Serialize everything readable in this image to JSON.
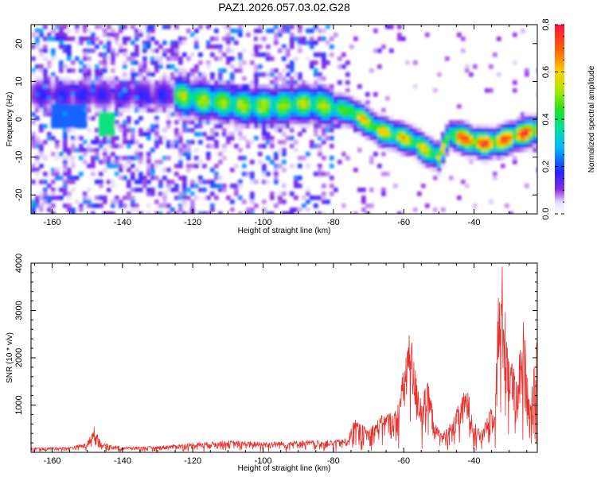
{
  "title": "PAZ1.2026.057.03.02.G28",
  "chart_data": [
    {
      "type": "heatmap",
      "title": "PAZ1.2026.057.03.02.G28",
      "xlabel": "Height of straight line (km)",
      "ylabel": "Frequency (Hz)",
      "xlim": [
        -166,
        -22
      ],
      "ylim": [
        -25,
        25
      ],
      "x_ticks": [
        -160,
        -140,
        -120,
        -100,
        -80,
        -60,
        -40
      ],
      "y_ticks": [
        -20,
        -10,
        0,
        10,
        20
      ],
      "colorbar": {
        "label": "Normalized spectral amplitude",
        "range": [
          0.0,
          0.8
        ],
        "ticks": [
          0.0,
          0.2,
          0.4,
          0.6,
          0.8
        ]
      },
      "ridge": {
        "description": "main spectral ridge (height km, frequency Hz)",
        "points": [
          [
            -125,
            6.5
          ],
          [
            -118,
            5
          ],
          [
            -112,
            4.5
          ],
          [
            -105,
            3.5
          ],
          [
            -100,
            3.5
          ],
          [
            -95,
            3.5
          ],
          [
            -90,
            4
          ],
          [
            -85,
            4
          ],
          [
            -80,
            3
          ],
          [
            -75,
            2
          ],
          [
            -70,
            -1
          ],
          [
            -67,
            -3
          ],
          [
            -63,
            -4
          ],
          [
            -60,
            -5
          ],
          [
            -57,
            -6
          ],
          [
            -54,
            -8
          ],
          [
            -50,
            -10
          ],
          [
            -47,
            -4
          ],
          [
            -43,
            -5
          ],
          [
            -40,
            -6
          ],
          [
            -37,
            -6.5
          ],
          [
            -33,
            -6
          ],
          [
            -30,
            -5
          ],
          [
            -27,
            -4
          ],
          [
            -23,
            -3
          ]
        ]
      }
    },
    {
      "type": "line",
      "xlabel": "Height of straight line (km)",
      "ylabel": "SNR (10 * v/v)",
      "xlim": [
        -166,
        -22
      ],
      "ylim": [
        0,
        4000
      ],
      "x_ticks": [
        -160,
        -140,
        -120,
        -100,
        -80,
        -60,
        -40
      ],
      "y_ticks": [
        1000,
        2000,
        3000,
        4000
      ],
      "color": "#e8302c",
      "envelope_points": [
        [
          -166,
          100
        ],
        [
          -155,
          120
        ],
        [
          -150,
          200
        ],
        [
          -148,
          600
        ],
        [
          -146,
          200
        ],
        [
          -140,
          120
        ],
        [
          -130,
          130
        ],
        [
          -120,
          200
        ],
        [
          -110,
          250
        ],
        [
          -100,
          220
        ],
        [
          -90,
          250
        ],
        [
          -80,
          260
        ],
        [
          -76,
          300
        ],
        [
          -74,
          700
        ],
        [
          -70,
          500
        ],
        [
          -66,
          800
        ],
        [
          -62,
          900
        ],
        [
          -60,
          1800
        ],
        [
          -59,
          2400
        ],
        [
          -58,
          2600
        ],
        [
          -57,
          1900
        ],
        [
          -55,
          1200
        ],
        [
          -53,
          1500
        ],
        [
          -51,
          600
        ],
        [
          -49,
          400
        ],
        [
          -46,
          700
        ],
        [
          -44,
          1100
        ],
        [
          -42,
          1400
        ],
        [
          -40,
          700
        ],
        [
          -38,
          400
        ],
        [
          -36,
          900
        ],
        [
          -34,
          1200
        ],
        [
          -33,
          3600
        ],
        [
          -32,
          4000
        ],
        [
          -31,
          3000
        ],
        [
          -30,
          2200
        ],
        [
          -28,
          1600
        ],
        [
          -27,
          2200
        ],
        [
          -26,
          2800
        ],
        [
          -25,
          2100
        ],
        [
          -24,
          1100
        ],
        [
          -22,
          2400
        ]
      ]
    }
  ]
}
